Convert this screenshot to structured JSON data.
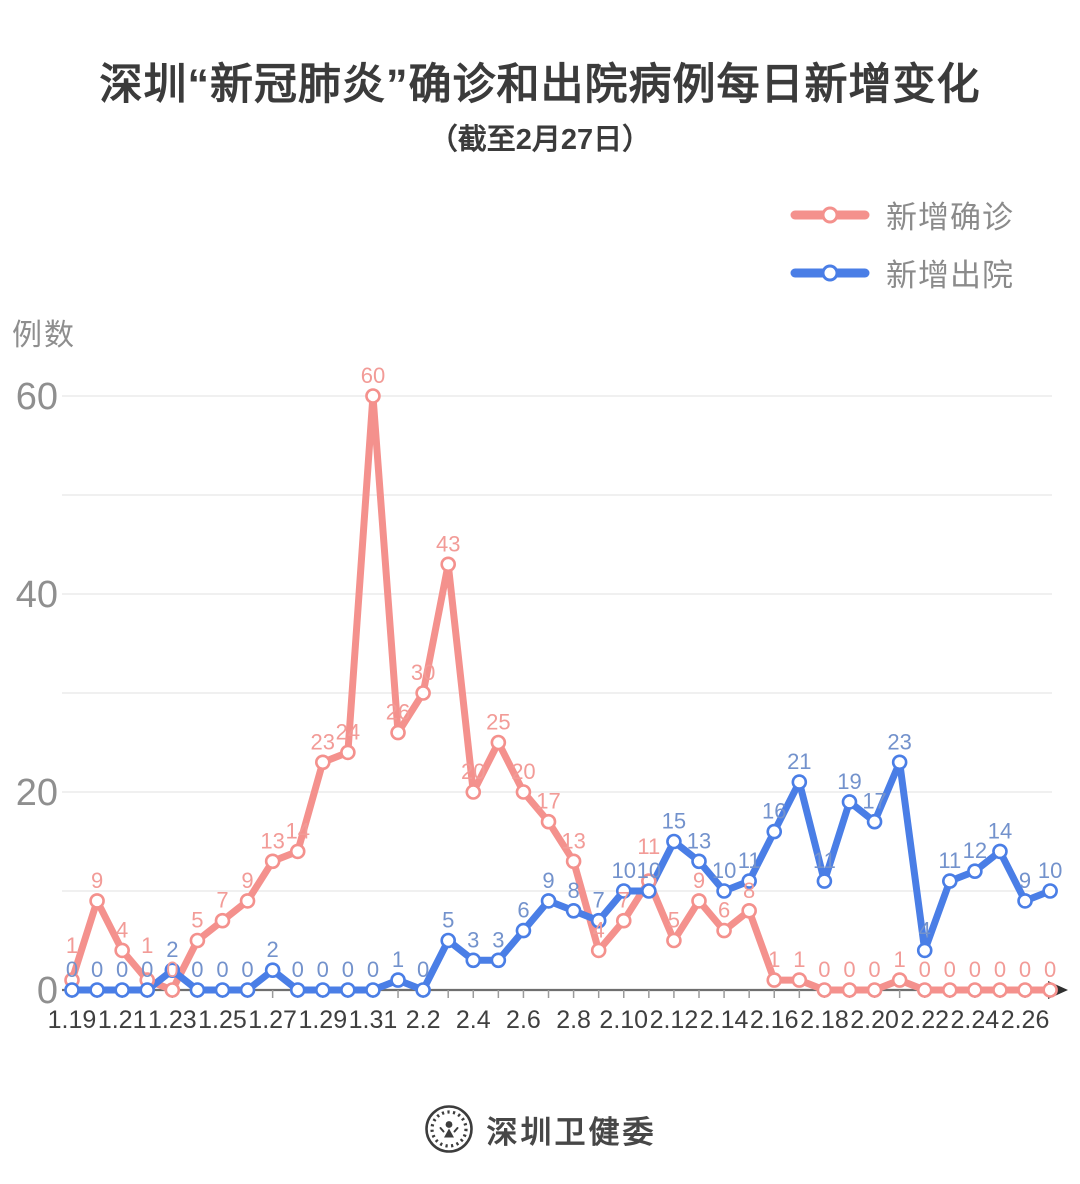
{
  "title": "深圳“新冠肺炎”确诊和出院病例每日新增变化",
  "subtitle": "（截至2月27日）",
  "y_axis_label": "例数",
  "legend": [
    {
      "label": "新增确诊",
      "color": "#F4918D"
    },
    {
      "label": "新增出院",
      "color": "#4A7EE6"
    }
  ],
  "footer": {
    "brand": "深圳卫健委",
    "logo": "shenzhen-health-commission-emblem"
  },
  "chart_data": {
    "type": "line",
    "title": "深圳“新冠肺炎”确诊和出院病例每日新增变化",
    "subtitle": "（截至2月27日）",
    "ylabel": "例数",
    "ylim": [
      0,
      60
    ],
    "yticks": [
      0,
      20,
      40,
      60
    ],
    "gridline_step": 10,
    "grid": "horizontal",
    "legend_position": "top-right",
    "x_label_every": 2,
    "categories": [
      "1.19",
      "1.20",
      "1.21",
      "1.22",
      "1.23",
      "1.24",
      "1.25",
      "1.26",
      "1.27",
      "1.28",
      "1.29",
      "1.30",
      "1.31",
      "2.1",
      "2.2",
      "2.3",
      "2.4",
      "2.5",
      "2.6",
      "2.7",
      "2.8",
      "2.9",
      "2.10",
      "2.11",
      "2.12",
      "2.13",
      "2.14",
      "2.15",
      "2.16",
      "2.17",
      "2.18",
      "2.19",
      "2.20",
      "2.21",
      "2.22",
      "2.23",
      "2.24",
      "2.25",
      "2.26",
      "2.27"
    ],
    "series": [
      {
        "name": "新增确诊",
        "color": "#F4918D",
        "label_color": "#F29B97",
        "values": [
          1,
          9,
          4,
          1,
          0,
          5,
          7,
          9,
          13,
          14,
          23,
          24,
          60,
          26,
          30,
          43,
          20,
          25,
          20,
          17,
          13,
          4,
          7,
          11,
          5,
          9,
          6,
          8,
          1,
          1,
          0,
          0,
          0,
          1,
          0,
          0,
          0,
          0,
          0,
          0
        ]
      },
      {
        "name": "新增出院",
        "color": "#4A7EE6",
        "label_color": "#7392CC",
        "values": [
          0,
          0,
          0,
          0,
          2,
          0,
          0,
          0,
          2,
          0,
          0,
          0,
          0,
          1,
          0,
          5,
          3,
          3,
          6,
          9,
          8,
          7,
          10,
          10,
          15,
          13,
          10,
          11,
          16,
          21,
          11,
          19,
          17,
          23,
          4,
          11,
          12,
          14,
          9,
          10
        ]
      }
    ]
  }
}
